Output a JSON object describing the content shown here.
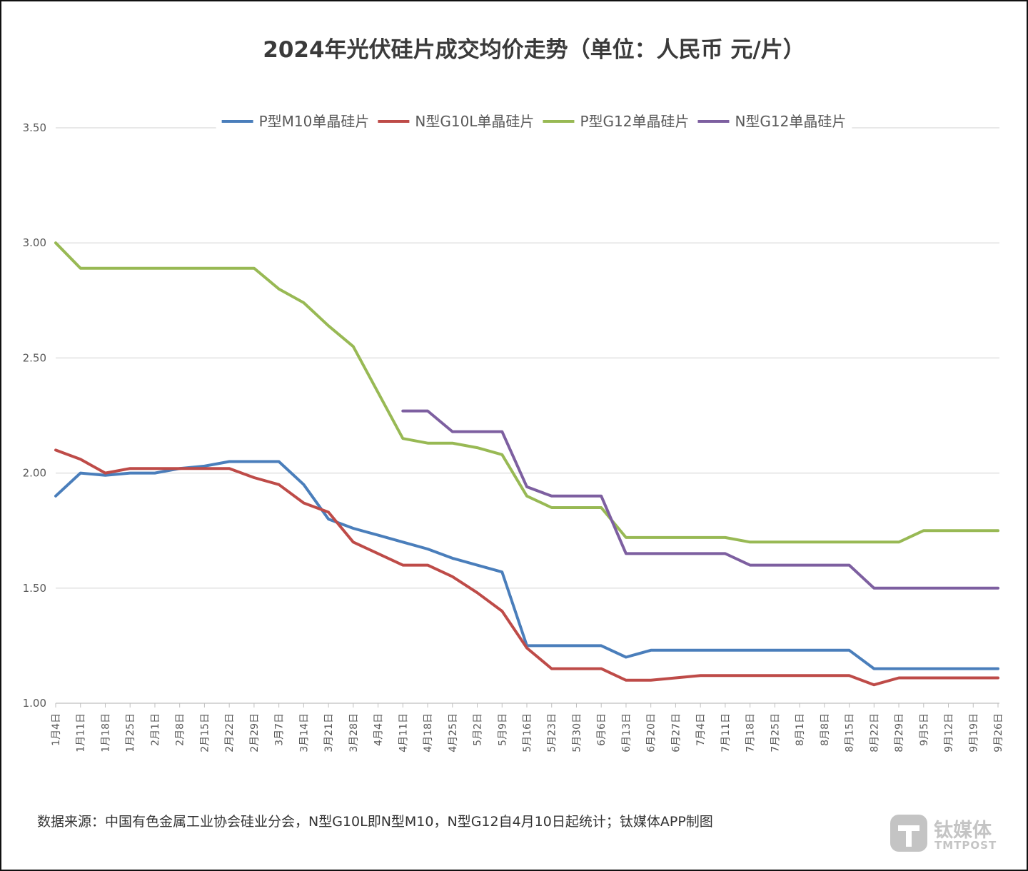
{
  "footer": {
    "source": "数据来源：中国有色金属工业协会硅业分会，N型G10L即N型M10，N型G12自4月10日起统计；钛媒体APP制图"
  },
  "watermark": {
    "cn": "钛媒体",
    "en": "TMTPOST"
  },
  "chart_data": {
    "type": "line",
    "title": "2024年光伏硅片成交均价走势（单位：人民币 元/片）",
    "xlabel": "",
    "ylabel": "",
    "ylim": [
      1.0,
      3.5
    ],
    "yticks": [
      "1.00",
      "1.50",
      "2.00",
      "2.50",
      "3.00",
      "3.50"
    ],
    "grid": "horizontal",
    "legend_position": "top",
    "categories": [
      "1月4日",
      "1月11日",
      "1月18日",
      "1月25日",
      "2月1日",
      "2月8日",
      "2月15日",
      "2月22日",
      "2月29日",
      "3月7日",
      "3月14日",
      "3月21日",
      "3月28日",
      "4月4日",
      "4月11日",
      "4月18日",
      "4月25日",
      "5月2日",
      "5月9日",
      "5月16日",
      "5月23日",
      "5月30日",
      "6月6日",
      "6月13日",
      "6月20日",
      "6月27日",
      "7月4日",
      "7月11日",
      "7月18日",
      "7月25日",
      "8月1日",
      "8月8日",
      "8月15日",
      "8月22日",
      "8月29日",
      "9月5日",
      "9月12日",
      "9月19日",
      "9月26日"
    ],
    "series": [
      {
        "name": "P型M10单晶硅片",
        "color": "#4a7ebb",
        "values": [
          1.9,
          2.0,
          1.99,
          2.0,
          2.0,
          2.02,
          2.03,
          2.05,
          2.05,
          2.05,
          1.95,
          1.8,
          1.76,
          1.73,
          1.7,
          1.67,
          1.63,
          1.6,
          1.57,
          1.25,
          1.25,
          1.25,
          1.25,
          1.2,
          1.23,
          1.23,
          1.23,
          1.23,
          1.23,
          1.23,
          1.23,
          1.23,
          1.23,
          1.15,
          1.15,
          1.15,
          1.15,
          1.15,
          1.15
        ]
      },
      {
        "name": "N型G10L单晶硅片",
        "color": "#be4b48",
        "values": [
          2.1,
          2.06,
          2.0,
          2.02,
          2.02,
          2.02,
          2.02,
          2.02,
          1.98,
          1.95,
          1.87,
          1.83,
          1.7,
          1.65,
          1.6,
          1.6,
          1.55,
          1.48,
          1.4,
          1.24,
          1.15,
          1.15,
          1.15,
          1.1,
          1.1,
          1.11,
          1.12,
          1.12,
          1.12,
          1.12,
          1.12,
          1.12,
          1.12,
          1.08,
          1.11,
          1.11,
          1.11,
          1.11,
          1.11
        ]
      },
      {
        "name": "P型G12单晶硅片",
        "color": "#98b954",
        "values": [
          3.0,
          2.89,
          2.89,
          2.89,
          2.89,
          2.89,
          2.89,
          2.89,
          2.89,
          2.8,
          2.74,
          2.64,
          2.55,
          2.35,
          2.15,
          2.13,
          2.13,
          2.11,
          2.08,
          1.9,
          1.85,
          1.85,
          1.85,
          1.72,
          1.72,
          1.72,
          1.72,
          1.72,
          1.7,
          1.7,
          1.7,
          1.7,
          1.7,
          1.7,
          1.7,
          1.75,
          1.75,
          1.75,
          1.75
        ]
      },
      {
        "name": "N型G12单晶硅片",
        "color": "#7d5fa0",
        "values": [
          null,
          null,
          null,
          null,
          null,
          null,
          null,
          null,
          null,
          null,
          null,
          null,
          null,
          null,
          2.27,
          2.27,
          2.18,
          2.18,
          2.18,
          1.94,
          1.9,
          1.9,
          1.9,
          1.65,
          1.65,
          1.65,
          1.65,
          1.65,
          1.6,
          1.6,
          1.6,
          1.6,
          1.6,
          1.5,
          1.5,
          1.5,
          1.5,
          1.5,
          1.5
        ]
      }
    ]
  }
}
